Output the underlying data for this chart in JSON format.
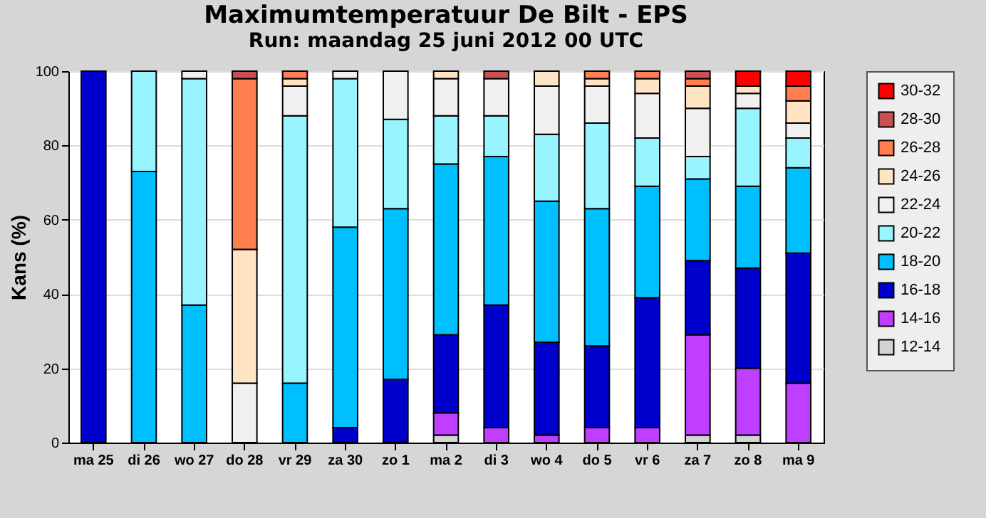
{
  "chart_data": {
    "type": "bar",
    "stacked": true,
    "title": "Maximumtemperatuur De Bilt - EPS",
    "subtitle": "Run: maandag 25 juni 2012    00 UTC",
    "ylabel": "Kans (%)",
    "categories": [
      "ma 25",
      "di 26",
      "wo 27",
      "do 28",
      "vr 29",
      "za 30",
      "zo  1",
      "ma  2",
      "di  3",
      "wo  4",
      "do  5",
      "vr  6",
      "za  7",
      "zo  8",
      "ma  9"
    ],
    "ylim": [
      0,
      100
    ],
    "yticks": [
      0,
      20,
      40,
      60,
      80,
      100
    ],
    "grid": "y",
    "legend": "right",
    "series": [
      {
        "name": "12-14",
        "color": "#d3d3d3",
        "values": [
          null,
          null,
          null,
          null,
          null,
          null,
          null,
          2,
          null,
          null,
          null,
          null,
          2,
          2,
          null
        ]
      },
      {
        "name": "14-16",
        "color": "#bf3eff",
        "values": [
          null,
          null,
          null,
          null,
          null,
          null,
          null,
          6,
          4,
          2,
          4,
          4,
          27,
          18,
          16
        ]
      },
      {
        "name": "16-18",
        "color": "#0000cd",
        "values": [
          100,
          null,
          null,
          null,
          null,
          4,
          17,
          21,
          33,
          25,
          22,
          35,
          20,
          27,
          35
        ]
      },
      {
        "name": "18-20",
        "color": "#00bfff",
        "values": [
          null,
          73,
          37,
          null,
          16,
          54,
          46,
          46,
          40,
          38,
          37,
          30,
          22,
          22,
          23
        ]
      },
      {
        "name": "20-22",
        "color": "#98f5ff",
        "values": [
          null,
          27,
          61,
          null,
          72,
          40,
          24,
          13,
          11,
          18,
          23,
          13,
          6,
          21,
          8
        ]
      },
      {
        "name": "22-24",
        "color": "#f0f0f0",
        "values": [
          null,
          null,
          2,
          16,
          8,
          2,
          13,
          10,
          10,
          13,
          10,
          12,
          13,
          4,
          4
        ]
      },
      {
        "name": "24-26",
        "color": "#ffe4c4",
        "values": [
          null,
          null,
          null,
          36,
          2,
          null,
          null,
          2,
          null,
          4,
          2,
          4,
          6,
          2,
          6
        ]
      },
      {
        "name": "26-28",
        "color": "#ff7f50",
        "values": [
          null,
          null,
          null,
          46,
          2,
          null,
          null,
          null,
          null,
          null,
          2,
          2,
          2,
          null,
          4
        ]
      },
      {
        "name": "28-30",
        "color": "#c85050",
        "values": [
          null,
          null,
          null,
          2,
          null,
          null,
          null,
          null,
          2,
          null,
          null,
          null,
          2,
          null,
          null
        ]
      },
      {
        "name": "30-32",
        "color": "#ff0000",
        "values": [
          null,
          null,
          null,
          null,
          null,
          null,
          null,
          null,
          null,
          null,
          null,
          null,
          null,
          4,
          4
        ]
      }
    ]
  }
}
